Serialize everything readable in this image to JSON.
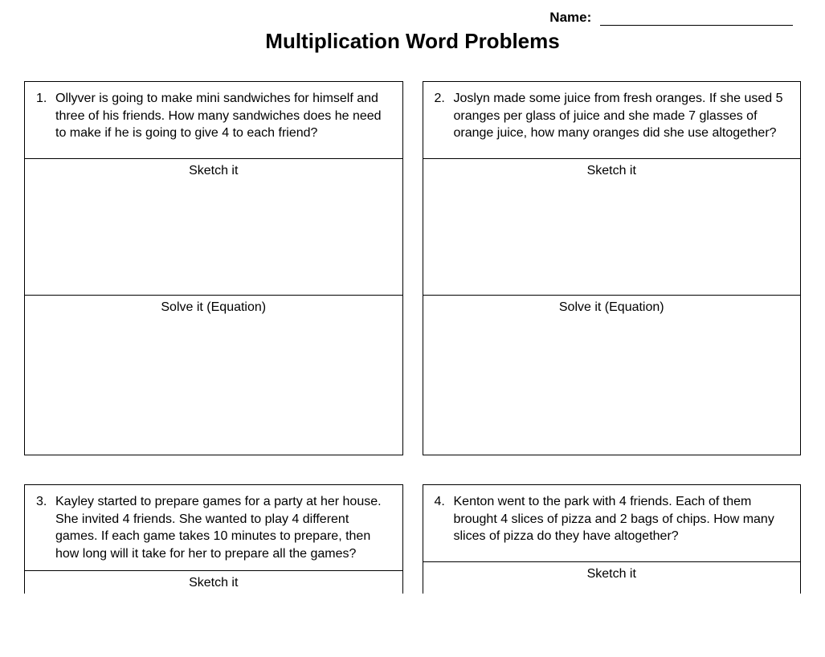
{
  "header": {
    "name_label": "Name:",
    "title": "Multiplication Word Problems"
  },
  "labels": {
    "sketch": "Sketch it",
    "solve": "Solve it (Equation)"
  },
  "problems": [
    {
      "number": "1.",
      "text": "Ollyver is going to make mini sandwiches for himself and three of his friends.  How many sandwiches does he need to make if he is going to give 4 to each friend?"
    },
    {
      "number": "2.",
      "text": "Joslyn made some juice from fresh oranges.  If she used 5 oranges per glass of juice and she made 7 glasses of orange juice, how many oranges did she use altogether?"
    },
    {
      "number": "3.",
      "text": "Kayley started to prepare games for a party at her house.  She invited 4 friends.  She wanted to play 4 different games.  If each game takes 10 minutes to prepare, then how long will it take for her to prepare all the games?"
    },
    {
      "number": "4.",
      "text": "Kenton went to the park with 4 friends.  Each of them brought 4 slices of pizza and 2 bags of chips.  How many slices of pizza do they have altogether?"
    }
  ],
  "style": {
    "background_color": "#ffffff",
    "text_color": "#000000",
    "border_color": "#000000",
    "title_fontsize": 26,
    "body_fontsize": 16,
    "name_fontsize": 17,
    "font_family": "Arial"
  }
}
